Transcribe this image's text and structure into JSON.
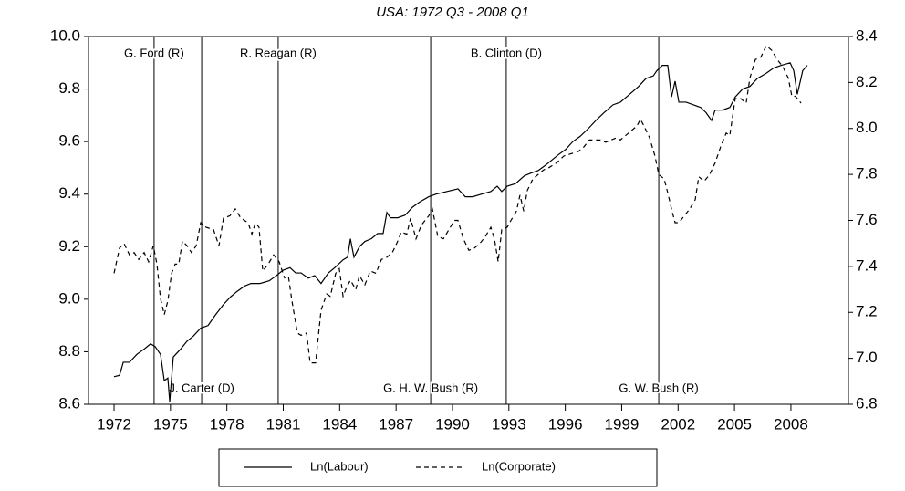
{
  "chart_data": {
    "type": "line",
    "title": "USA: 1972 Q3 - 2008 Q1",
    "xlim": [
      1970.64,
      2011.06
    ],
    "xticks": [
      1972,
      1975,
      1978,
      1981,
      1984,
      1987,
      1990,
      1993,
      1996,
      1999,
      2002,
      2005,
      2008
    ],
    "ylim": [
      8.6,
      10.0
    ],
    "yticks": [
      8.6,
      8.8,
      {
        "value": 9,
        "label": "9.0"
      },
      9.2,
      9.4,
      9.6,
      9.8,
      {
        "value": 10,
        "label": "10.0"
      }
    ],
    "y2lim": [
      6.8,
      8.4
    ],
    "y2ticks": [
      6.8,
      {
        "value": 7,
        "label": "7.0"
      },
      7.2,
      7.4,
      7.6,
      7.8,
      {
        "value": 8,
        "label": "8.0"
      },
      8.2,
      8.4
    ],
    "legend": "bottom",
    "annotations": [
      {
        "text": "G. Ford (R)",
        "x": 1974.13,
        "position": "top"
      },
      {
        "text": "J. Carter (D)",
        "x": 1976.66,
        "position": "bottom"
      },
      {
        "text": "R. Reagan (R)",
        "x": 1980.73,
        "position": "top"
      },
      {
        "text": "G. H. W. Bush (R)",
        "x": 1988.84,
        "position": "bottom"
      },
      {
        "text": "B. Clinton (D)",
        "x": 1992.86,
        "position": "top"
      },
      {
        "text": "G. W. Bush (R)",
        "x": 2000.97,
        "position": "bottom"
      }
    ],
    "series": [
      {
        "name": "Ln(Labour)",
        "color": "#000000",
        "style": "solid",
        "axis": "y",
        "x": [
          1972.0,
          1972.29,
          1972.49,
          1972.82,
          1973.21,
          1973.6,
          1973.94,
          1974.18,
          1974.47,
          1974.67,
          1974.86,
          1974.96,
          1975.15,
          1975.54,
          1975.88,
          1976.22,
          1976.61,
          1977.0,
          1977.39,
          1977.82,
          1978.21,
          1978.55,
          1978.94,
          1979.28,
          1979.76,
          1980.25,
          1980.64,
          1980.98,
          1981.36,
          1981.66,
          1981.95,
          1982.33,
          1982.67,
          1983.01,
          1983.4,
          1983.74,
          1984.18,
          1984.42,
          1984.57,
          1984.76,
          1985.05,
          1985.34,
          1985.68,
          1986.02,
          1986.31,
          1986.51,
          1986.7,
          1987.09,
          1987.48,
          1987.87,
          1988.25,
          1988.74,
          1989.13,
          1989.71,
          1990.29,
          1990.68,
          1991.07,
          1991.55,
          1992.04,
          1992.38,
          1992.62,
          1992.91,
          1993.35,
          1993.83,
          1994.17,
          1994.56,
          1994.95,
          1995.29,
          1995.63,
          1996.02,
          1996.4,
          1996.79,
          1997.23,
          1997.62,
          1998.06,
          1998.54,
          1998.93,
          1999.42,
          1999.9,
          2000.29,
          2000.68,
          2000.87,
          2001.16,
          2001.45,
          2001.65,
          2001.84,
          2002.04,
          2002.42,
          2002.81,
          2003.2,
          2003.49,
          2003.78,
          2003.97,
          2004.36,
          2004.75,
          2005.04,
          2005.43,
          2005.82,
          2006.21,
          2006.69,
          2007.08,
          2007.47,
          2007.96,
          2008.15,
          2008.34,
          2008.63,
          2008.87
        ],
        "values": [
          8.705,
          8.71,
          8.76,
          8.76,
          8.79,
          8.81,
          8.83,
          8.82,
          8.79,
          8.69,
          8.7,
          8.61,
          8.78,
          8.81,
          8.84,
          8.86,
          8.89,
          8.9,
          8.94,
          8.98,
          9.01,
          9.03,
          9.05,
          9.06,
          9.06,
          9.07,
          9.09,
          9.11,
          9.12,
          9.1,
          9.1,
          9.08,
          9.09,
          9.06,
          9.1,
          9.12,
          9.15,
          9.16,
          9.23,
          9.16,
          9.2,
          9.22,
          9.23,
          9.25,
          9.25,
          9.33,
          9.31,
          9.31,
          9.32,
          9.35,
          9.37,
          9.39,
          9.4,
          9.41,
          9.42,
          9.39,
          9.39,
          9.4,
          9.41,
          9.43,
          9.41,
          9.43,
          9.44,
          9.47,
          9.48,
          9.49,
          9.51,
          9.53,
          9.55,
          9.57,
          9.6,
          9.62,
          9.65,
          9.68,
          9.71,
          9.74,
          9.75,
          9.78,
          9.81,
          9.84,
          9.85,
          9.87,
          9.89,
          9.89,
          9.77,
          9.83,
          9.75,
          9.75,
          9.74,
          9.73,
          9.71,
          9.68,
          9.72,
          9.72,
          9.73,
          9.77,
          9.8,
          9.81,
          9.84,
          9.86,
          9.88,
          9.89,
          9.9,
          9.87,
          9.78,
          9.87,
          9.89
        ]
      },
      {
        "name": "Ln(Corporate)",
        "color": "#000000",
        "style": "dashed",
        "axis": "y2",
        "x": [
          1972.0,
          1972.29,
          1972.53,
          1972.82,
          1973.07,
          1973.31,
          1973.6,
          1973.84,
          1974.09,
          1974.28,
          1974.47,
          1974.67,
          1974.86,
          1975.06,
          1975.25,
          1975.44,
          1975.64,
          1975.88,
          1976.12,
          1976.37,
          1976.61,
          1976.9,
          1977.29,
          1977.58,
          1977.82,
          1978.16,
          1978.45,
          1978.74,
          1979.13,
          1979.33,
          1979.52,
          1979.71,
          1979.91,
          1980.2,
          1980.49,
          1980.78,
          1981.07,
          1981.27,
          1981.46,
          1981.75,
          1981.95,
          1982.24,
          1982.43,
          1982.72,
          1983.01,
          1983.31,
          1983.5,
          1983.79,
          1983.98,
          1984.18,
          1984.37,
          1984.57,
          1984.86,
          1985.05,
          1985.34,
          1985.63,
          1985.93,
          1986.22,
          1986.51,
          1986.8,
          1987.09,
          1987.28,
          1987.57,
          1987.77,
          1988.06,
          1988.35,
          1988.74,
          1988.93,
          1989.22,
          1989.52,
          1989.81,
          1990.1,
          1990.29,
          1990.58,
          1990.87,
          1991.17,
          1991.46,
          1991.75,
          1992.04,
          1992.23,
          1992.43,
          1992.62,
          1992.91,
          1993.11,
          1993.4,
          1993.59,
          1993.79,
          1993.98,
          1994.27,
          1994.56,
          1994.85,
          1995.14,
          1995.53,
          1995.92,
          1996.31,
          1996.7,
          1996.99,
          1997.28,
          1997.57,
          1997.86,
          1998.15,
          1998.44,
          1998.74,
          1998.93,
          1999.22,
          1999.51,
          1999.8,
          2000.0,
          2000.19,
          2000.48,
          2000.77,
          2000.97,
          2001.26,
          2001.45,
          2001.65,
          2001.84,
          2002.04,
          2002.33,
          2002.62,
          2002.91,
          2003.1,
          2003.39,
          2003.68,
          2003.97,
          2004.26,
          2004.56,
          2004.75,
          2005.04,
          2005.33,
          2005.62,
          2005.82,
          2006.11,
          2006.4,
          2006.69,
          2006.98,
          2007.27,
          2007.56,
          2007.86,
          2008.05,
          2008.24,
          2008.54
        ],
        "values": [
          7.37,
          7.48,
          7.5,
          7.45,
          7.46,
          7.43,
          7.46,
          7.42,
          7.49,
          7.41,
          7.26,
          7.19,
          7.25,
          7.37,
          7.41,
          7.41,
          7.51,
          7.49,
          7.46,
          7.49,
          7.59,
          7.57,
          7.56,
          7.49,
          7.61,
          7.62,
          7.65,
          7.61,
          7.59,
          7.54,
          7.59,
          7.57,
          7.38,
          7.41,
          7.45,
          7.42,
          7.35,
          7.36,
          7.25,
          7.11,
          7.1,
          7.11,
          6.98,
          6.98,
          7.21,
          7.28,
          7.27,
          7.37,
          7.39,
          7.27,
          7.31,
          7.34,
          7.3,
          7.36,
          7.32,
          7.38,
          7.37,
          7.43,
          7.44,
          7.46,
          7.51,
          7.55,
          7.54,
          7.61,
          7.52,
          7.58,
          7.62,
          7.65,
          7.53,
          7.52,
          7.56,
          7.6,
          7.6,
          7.52,
          7.47,
          7.48,
          7.5,
          7.53,
          7.57,
          7.52,
          7.42,
          7.56,
          7.57,
          7.6,
          7.64,
          7.71,
          7.64,
          7.73,
          7.78,
          7.8,
          7.82,
          7.83,
          7.85,
          7.88,
          7.89,
          7.9,
          7.92,
          7.95,
          7.95,
          7.95,
          7.94,
          7.95,
          7.96,
          7.95,
          7.97,
          7.99,
          8.01,
          8.04,
          8.01,
          7.96,
          7.88,
          7.8,
          7.78,
          7.72,
          7.65,
          7.59,
          7.59,
          7.62,
          7.65,
          7.69,
          7.79,
          7.77,
          7.8,
          7.85,
          7.92,
          7.98,
          7.97,
          8.13,
          8.13,
          8.11,
          8.22,
          8.3,
          8.31,
          8.36,
          8.34,
          8.3,
          8.27,
          8.22,
          8.14,
          8.14,
          8.11
        ]
      }
    ]
  }
}
